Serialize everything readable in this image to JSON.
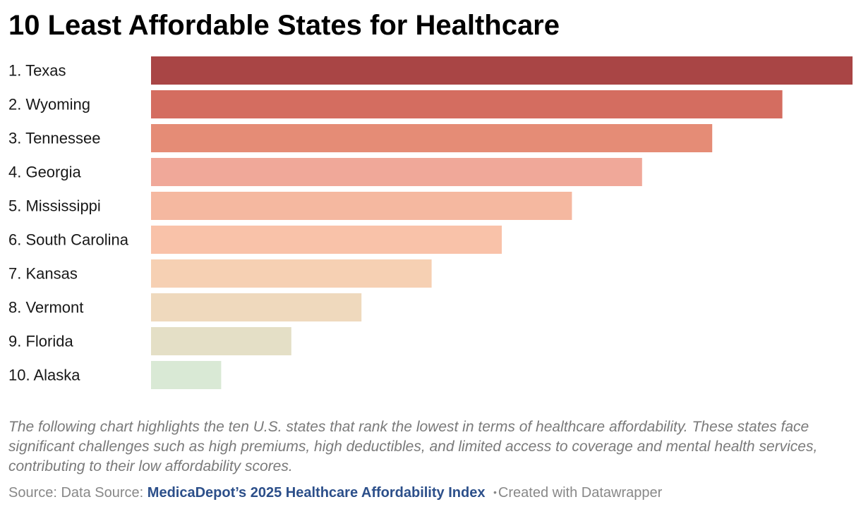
{
  "title": "10 Least Affordable States for Healthcare",
  "description": "The following chart highlights the ten U.S. states that rank the lowest in terms of healthcare affordability. These states face significant challenges such as high premiums, high deductibles, and limited access to coverage and mental health services, contributing to their low affordability scores.",
  "footer": {
    "source_prefix": "Source: Data Source:",
    "source_link": "MedicaDepot’s 2025 Healthcare Affordability Index",
    "separator": "•",
    "credit": "Created with Datawrapper"
  },
  "chart_data": {
    "type": "bar",
    "orientation": "horizontal",
    "categories": [
      "1. Texas",
      "2. Wyoming",
      "3. Tennessee",
      "4. Georgia",
      "5. Mississippi",
      "6. South Carolina",
      "7. Kansas",
      "8. Vermont",
      "9. Florida",
      "10. Alaska"
    ],
    "values": [
      10,
      9,
      8,
      7,
      6,
      5,
      4,
      3,
      2,
      1
    ],
    "xlim": [
      0,
      10
    ],
    "colors": [
      "#a94545",
      "#d46d60",
      "#e58c76",
      "#f0a899",
      "#f5b8a0",
      "#f9c2a9",
      "#f6d0b3",
      "#efd9bd",
      "#e4dfc6",
      "#d9e9d5"
    ],
    "title": "10 Least Affordable States for Healthcare",
    "xlabel": "",
    "ylabel": "",
    "grid": false,
    "legend": "none"
  }
}
